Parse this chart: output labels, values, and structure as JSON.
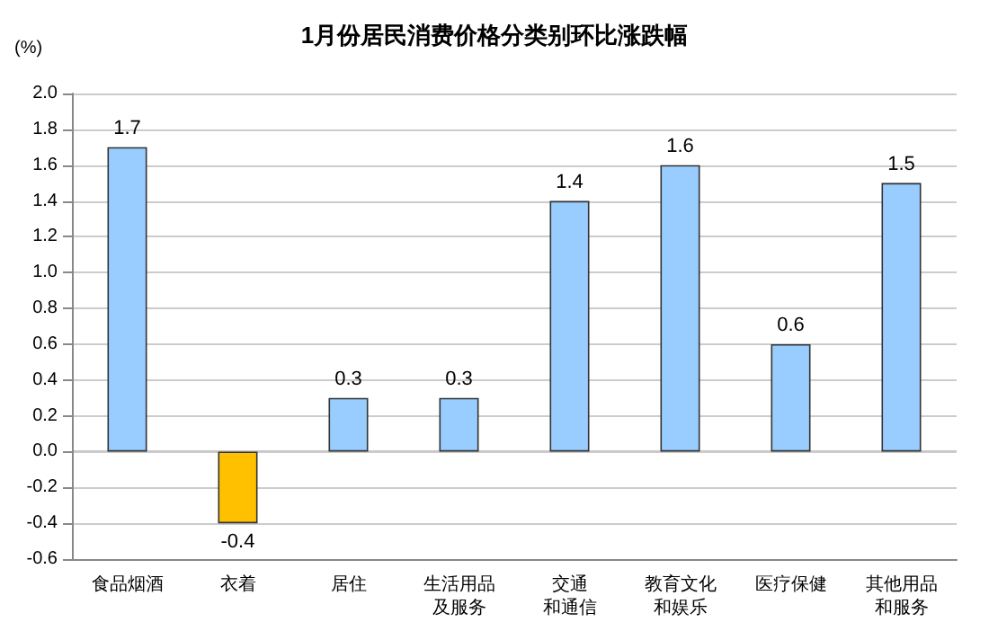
{
  "chart_data": {
    "type": "bar",
    "title": "1月份居民消费价格分类别环比涨跌幅",
    "ylabel": "(%)",
    "categories": [
      "食品烟酒",
      "衣着",
      "居住",
      "生活用品及服务",
      "交通和通信",
      "教育文化和娱乐",
      "医疗保健",
      "其他用品和服务"
    ],
    "values": [
      1.7,
      -0.4,
      0.3,
      0.3,
      1.4,
      1.6,
      0.6,
      1.5
    ],
    "colors": [
      "#99ccff",
      "#ffc000",
      "#99ccff",
      "#99ccff",
      "#99ccff",
      "#99ccff",
      "#99ccff",
      "#99ccff"
    ],
    "ylim": [
      -0.6,
      2.0
    ],
    "yticks": [
      {
        "value": -0.6,
        "label": "-0.6"
      },
      {
        "value": -0.4,
        "label": "-0.4"
      },
      {
        "value": -0.2,
        "label": "-0.2"
      },
      {
        "value": 0,
        "label": "0.0"
      },
      {
        "value": 0.2,
        "label": "0.2"
      },
      {
        "value": 0.4,
        "label": "0.4"
      },
      {
        "value": 0.6,
        "label": "0.6"
      },
      {
        "value": 0.8,
        "label": "0.8"
      },
      {
        "value": 1.0,
        "label": "1.0"
      },
      {
        "value": 1.2,
        "label": "1.2"
      },
      {
        "value": 1.4,
        "label": "1.4"
      },
      {
        "value": 1.6,
        "label": "1.6"
      },
      {
        "value": 1.8,
        "label": "1.8"
      },
      {
        "value": 2.0,
        "label": "2.0"
      }
    ],
    "grid": "y",
    "data_labels": true
  }
}
